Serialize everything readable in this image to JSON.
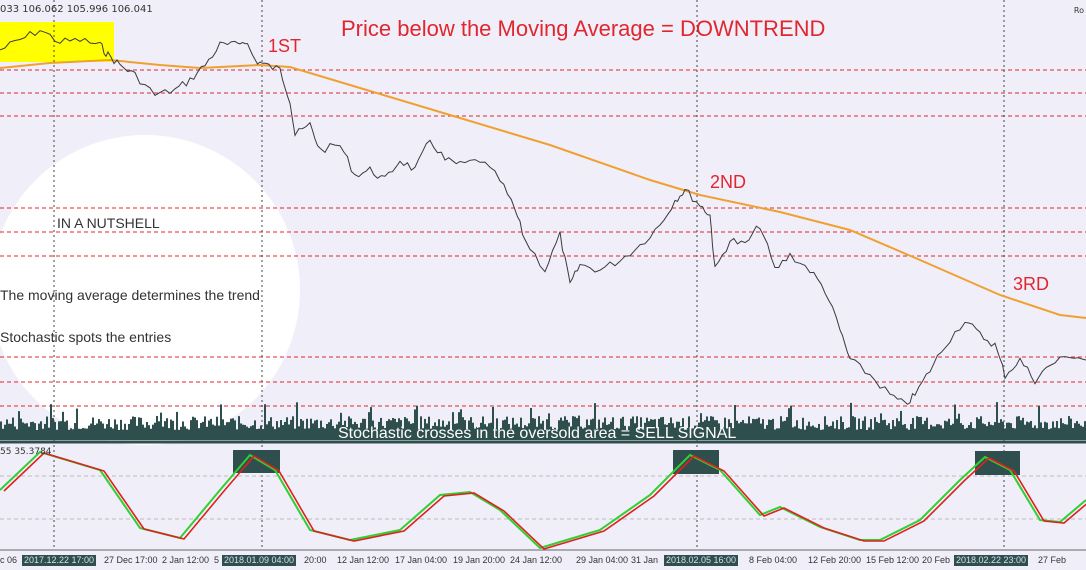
{
  "header": {
    "ohlc": "033 106.062 105.996 106.041",
    "corner": "Ro"
  },
  "headline": "Price below the Moving Average = DOWNTREND",
  "entries": [
    "1ST",
    "2ND",
    "3RD"
  ],
  "notes": {
    "title": "IN A NUTSHELL",
    "line1": "The moving average determines the trend",
    "line2": "Stochastic spots the entries"
  },
  "sell_signal": "Stochastic crosses in the oversold area = SELL SIGNAL",
  "stochastic_value": "55 35.3784",
  "time_axis": [
    "c 06",
    "2017.12.22 17:00",
    "27 Dec 17:00",
    "2 Jan 12:00",
    "5",
    "2018.01.09 04:00",
    "20:00",
    "12 Jan 12:00",
    "17 Jan 04:00",
    "19 Jan 20:00",
    "24 Jan 12:00",
    "29 Jan 04:00",
    "31 Jan",
    "2018.02.05 16:00",
    "8 Feb 04:00",
    "12 Feb 20:00",
    "15 Feb 12:00",
    "20 Feb",
    "2018.02.22 23:00",
    "27 Feb"
  ],
  "colors": {
    "price": "#3a3a3a",
    "moving_average": "#f0a030",
    "levels": "#e0262e",
    "stoch_main": "#30d030",
    "stoch_signal": "#e02020",
    "highlight": "#ffff00",
    "volume": "#2f4f4f"
  }
}
